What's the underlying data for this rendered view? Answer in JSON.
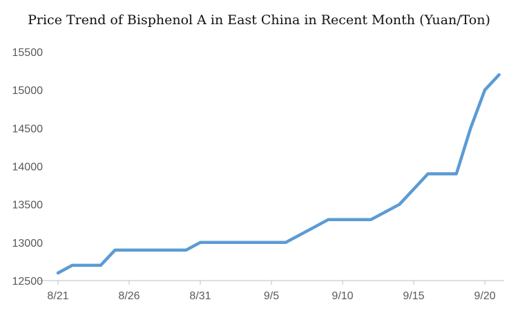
{
  "chart_data": {
    "type": "line",
    "title": "Price Trend of Bisphenol A in East China in Recent Month (Yuan/Ton)",
    "xlabel": "",
    "ylabel": "",
    "ylim": [
      12500,
      15500
    ],
    "yticks": [
      12500,
      13000,
      13500,
      14000,
      14500,
      15000,
      15500
    ],
    "xticks": [
      "8/21",
      "8/26",
      "8/31",
      "9/5",
      "9/10",
      "9/15",
      "9/20"
    ],
    "grid": false,
    "series_color": "#5b9bd5",
    "x": [
      "8/21",
      "8/22",
      "8/23",
      "8/24",
      "8/25",
      "8/26",
      "8/27",
      "8/28",
      "8/29",
      "8/30",
      "8/31",
      "9/1",
      "9/2",
      "9/3",
      "9/4",
      "9/5",
      "9/6",
      "9/7",
      "9/8",
      "9/9",
      "9/10",
      "9/11",
      "9/12",
      "9/13",
      "9/14",
      "9/15",
      "9/16",
      "9/17",
      "9/18",
      "9/19",
      "9/20",
      "9/21"
    ],
    "values": [
      12600,
      12700,
      12700,
      12700,
      12900,
      12900,
      12900,
      12900,
      12900,
      12900,
      13000,
      13000,
      13000,
      13000,
      13000,
      13000,
      13000,
      13100,
      13200,
      13300,
      13300,
      13300,
      13300,
      13400,
      13500,
      13700,
      13900,
      13900,
      13900,
      14500,
      15000,
      15200
    ]
  }
}
